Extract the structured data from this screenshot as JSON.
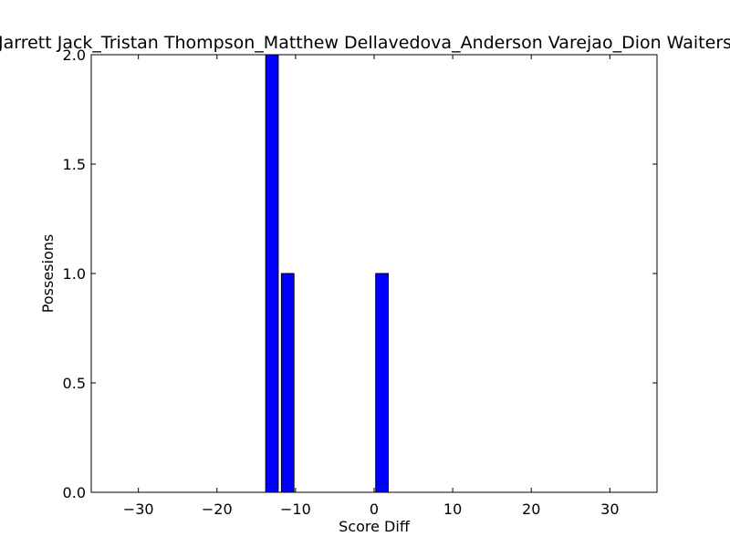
{
  "chart_data": {
    "type": "bar",
    "title": "Jarrett Jack_Tristan Thompson_Matthew Dellavedova_Anderson Varejao_Dion Waiters",
    "xlabel": "Score Diff",
    "ylabel": "Possesions",
    "xlim": [
      -36,
      36
    ],
    "ylim": [
      0,
      2.0
    ],
    "bar_width": 1.6,
    "bar_color": "#0000ff",
    "edge_color": "#000000",
    "x_ticks": [
      -30,
      -20,
      -10,
      0,
      10,
      20,
      30
    ],
    "x_tick_labels": [
      "−30",
      "−20",
      "−10",
      "0",
      "10",
      "20",
      "30"
    ],
    "y_ticks": [
      0.0,
      0.5,
      1.0,
      1.5,
      2.0
    ],
    "y_tick_labels": [
      "0.0",
      "0.5",
      "1.0",
      "1.5",
      "2.0"
    ],
    "grid": false,
    "legend": "none",
    "bars": [
      {
        "x": -13,
        "value": 2
      },
      {
        "x": -11,
        "value": 1
      },
      {
        "x": 1,
        "value": 1
      }
    ]
  }
}
